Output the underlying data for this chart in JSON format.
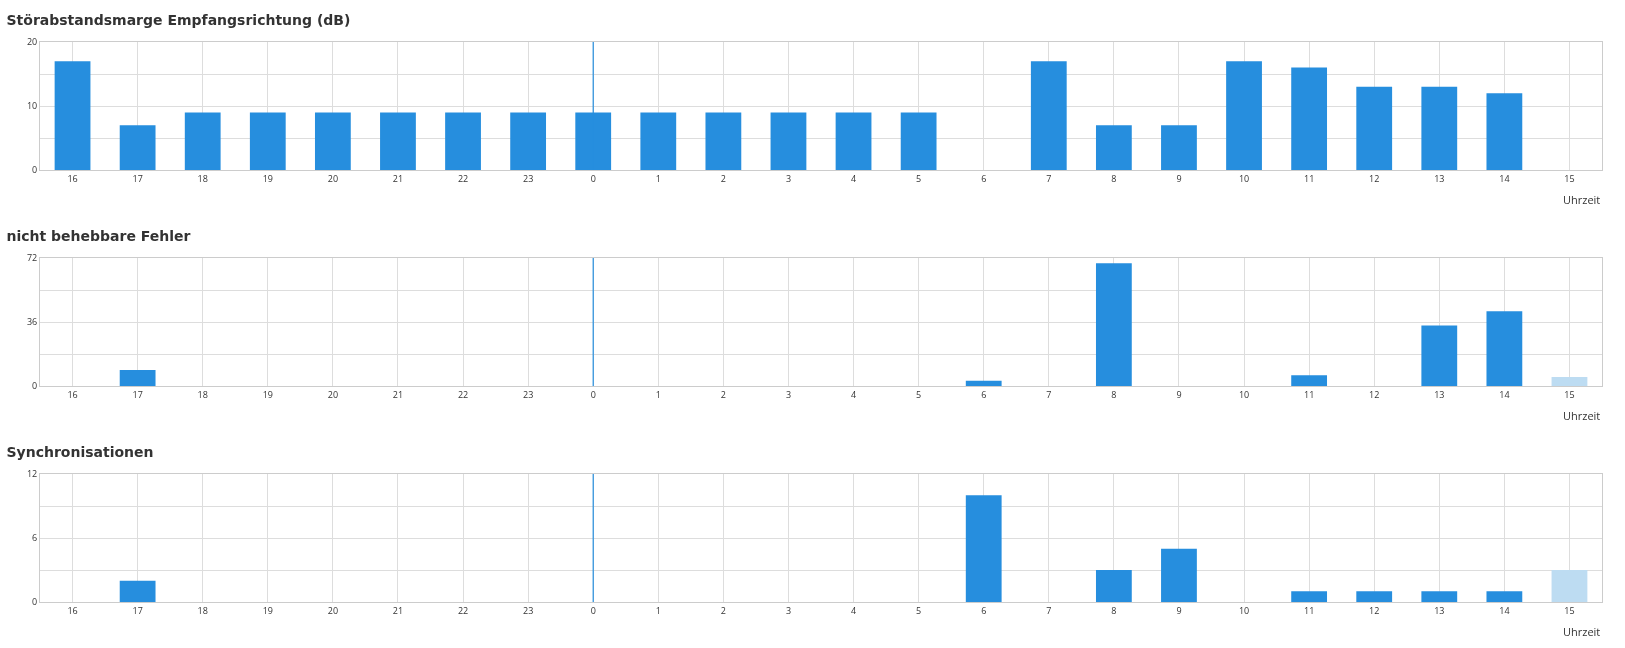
{
  "chart_data": [
    {
      "type": "bar",
      "title": "Störabstandsmarge Empfangsrichtung (dB)",
      "xlabel": "Uhrzeit",
      "categories": [
        "16",
        "17",
        "18",
        "19",
        "20",
        "21",
        "22",
        "23",
        "0",
        "1",
        "2",
        "3",
        "4",
        "5",
        "6",
        "7",
        "8",
        "9",
        "10",
        "11",
        "12",
        "13",
        "14",
        "15"
      ],
      "values": [
        17,
        7,
        9,
        9,
        9,
        9,
        9,
        9,
        9,
        9,
        9,
        9,
        9,
        9,
        null,
        17,
        7,
        7,
        17,
        16,
        13,
        13,
        12,
        null
      ],
      "color": "#268ede",
      "ylim": [
        0,
        20
      ],
      "yticks": [
        0,
        {
          "value": 5,
          "label": null
        },
        10,
        {
          "value": 15,
          "label": null
        },
        20
      ],
      "grid": true,
      "ref_lines": [
        {
          "axis": "x",
          "value": "0",
          "color": "#268ede"
        }
      ]
    },
    {
      "type": "bar",
      "title": "nicht behebbare Fehler",
      "xlabel": "Uhrzeit",
      "categories": [
        "16",
        "17",
        "18",
        "19",
        "20",
        "21",
        "22",
        "23",
        "0",
        "1",
        "2",
        "3",
        "4",
        "5",
        "6",
        "7",
        "8",
        "9",
        "10",
        "11",
        "12",
        "13",
        "14",
        "15"
      ],
      "values": [
        0,
        9,
        0,
        0,
        0,
        0,
        0,
        0,
        0,
        0,
        0,
        0,
        0,
        0,
        3,
        0,
        69,
        0,
        0,
        6,
        0,
        34,
        42,
        5
      ],
      "colors": [
        "#268ede",
        "#268ede",
        "#268ede",
        "#268ede",
        "#268ede",
        "#268ede",
        "#268ede",
        "#268ede",
        "#268ede",
        "#268ede",
        "#268ede",
        "#268ede",
        "#268ede",
        "#268ede",
        "#268ede",
        "#268ede",
        "#268ede",
        "#268ede",
        "#268ede",
        "#268ede",
        "#268ede",
        "#268ede",
        "#268ede",
        "#bddcf2"
      ],
      "ylim": [
        0,
        72
      ],
      "yticks": [
        0,
        {
          "value": 18,
          "label": null
        },
        36,
        {
          "value": 54,
          "label": null
        },
        72
      ],
      "grid": true,
      "ref_lines": [
        {
          "axis": "x",
          "value": "0",
          "color": "#268ede"
        }
      ]
    },
    {
      "type": "bar",
      "title": "Synchronisationen",
      "xlabel": "Uhrzeit",
      "categories": [
        "16",
        "17",
        "18",
        "19",
        "20",
        "21",
        "22",
        "23",
        "0",
        "1",
        "2",
        "3",
        "4",
        "5",
        "6",
        "7",
        "8",
        "9",
        "10",
        "11",
        "12",
        "13",
        "14",
        "15"
      ],
      "values": [
        0,
        2,
        0,
        0,
        0,
        0,
        0,
        0,
        0,
        0,
        0,
        0,
        0,
        0,
        10,
        0,
        3,
        5,
        0,
        1,
        1,
        1,
        1,
        3
      ],
      "colors": [
        "#268ede",
        "#268ede",
        "#268ede",
        "#268ede",
        "#268ede",
        "#268ede",
        "#268ede",
        "#268ede",
        "#268ede",
        "#268ede",
        "#268ede",
        "#268ede",
        "#268ede",
        "#268ede",
        "#268ede",
        "#268ede",
        "#268ede",
        "#268ede",
        "#268ede",
        "#268ede",
        "#268ede",
        "#268ede",
        "#268ede",
        "#bddcf2"
      ],
      "ylim": [
        0,
        12
      ],
      "yticks": [
        0,
        {
          "value": 3,
          "label": null
        },
        6,
        {
          "value": 9,
          "label": null
        },
        12
      ],
      "grid": true,
      "ref_lines": [
        {
          "axis": "x",
          "value": "0",
          "color": "#268ede"
        }
      ]
    }
  ]
}
